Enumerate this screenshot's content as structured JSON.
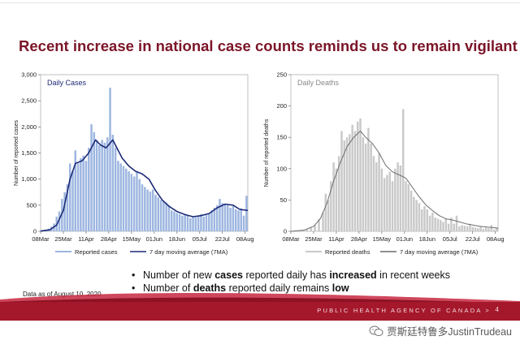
{
  "title": "Recent increase in national case counts reminds us to remain vigilant",
  "bullets": [
    {
      "pre": "Number of new ",
      "bold": "cases",
      "post": " reported daily has ",
      "bold2": "increased",
      "post2": " in recent weeks"
    },
    {
      "pre": "Number of ",
      "bold": "deaths",
      "post": " reported daily remains ",
      "bold2": "low",
      "post2": ""
    }
  ],
  "footnote": "Data as of August 10, 2020",
  "footer": {
    "agency": "PUBLIC HEALTH AGENCY OF CANADA >",
    "page": "4"
  },
  "watermark": "贾斯廷特鲁多JustinTrudeau",
  "colors": {
    "title": "#7b1528",
    "footer": "#a5182c",
    "cases_bar": "#9db6e0",
    "cases_line": "#1c2a78",
    "deaths_bar": "#c9c9c9",
    "deaths_line": "#6d6d6d"
  },
  "chart_data": [
    {
      "type": "bar",
      "title": "Daily Cases",
      "ylabel": "Number of reported cases",
      "xlabel": "",
      "ylim": [
        0,
        3000
      ],
      "yticks": [
        0,
        500,
        1000,
        1500,
        2000,
        2500,
        3000
      ],
      "ytick_labels": [
        "0",
        "500",
        "1,000",
        "1,500",
        "2,000",
        "2,500",
        "3,000"
      ],
      "x_start": "2020-03-08",
      "x_end": "2020-08-10",
      "xtick_labels": [
        "08Mar",
        "25Mar",
        "11Apr",
        "28Apr",
        "15May",
        "01Jun",
        "18Jun",
        "05Jul",
        "22Jul",
        "08Aug"
      ],
      "legend": [
        "Reported cases",
        "7 day moving average (7MA)"
      ],
      "legend_position": "bottom",
      "bar_series": "Reported cases",
      "line_series": "7 day moving average (7MA)",
      "reported": [
        [
          "2020-03-08",
          5
        ],
        [
          "2020-03-10",
          10
        ],
        [
          "2020-03-12",
          20
        ],
        [
          "2020-03-14",
          50
        ],
        [
          "2020-03-16",
          90
        ],
        [
          "2020-03-18",
          150
        ],
        [
          "2020-03-20",
          280
        ],
        [
          "2020-03-22",
          380
        ],
        [
          "2020-03-24",
          620
        ],
        [
          "2020-03-26",
          750
        ],
        [
          "2020-03-28",
          900
        ],
        [
          "2020-03-30",
          1300
        ],
        [
          "2020-04-01",
          1150
        ],
        [
          "2020-04-03",
          1550
        ],
        [
          "2020-04-05",
          1300
        ],
        [
          "2020-04-07",
          1400
        ],
        [
          "2020-04-09",
          1450
        ],
        [
          "2020-04-11",
          1350
        ],
        [
          "2020-04-13",
          1600
        ],
        [
          "2020-04-15",
          2050
        ],
        [
          "2020-04-17",
          1900
        ],
        [
          "2020-04-19",
          1750
        ],
        [
          "2020-04-21",
          1650
        ],
        [
          "2020-04-23",
          1750
        ],
        [
          "2020-04-25",
          1700
        ],
        [
          "2020-04-27",
          1800
        ],
        [
          "2020-04-29",
          2750
        ],
        [
          "2020-05-01",
          1850
        ],
        [
          "2020-05-03",
          1600
        ],
        [
          "2020-05-05",
          1350
        ],
        [
          "2020-05-07",
          1300
        ],
        [
          "2020-05-09",
          1250
        ],
        [
          "2020-05-11",
          1200
        ],
        [
          "2020-05-13",
          1150
        ],
        [
          "2020-05-15",
          1100
        ],
        [
          "2020-05-17",
          1050
        ],
        [
          "2020-05-19",
          1150
        ],
        [
          "2020-05-21",
          1000
        ],
        [
          "2020-05-23",
          900
        ],
        [
          "2020-05-25",
          850
        ],
        [
          "2020-05-27",
          800
        ],
        [
          "2020-05-29",
          760
        ],
        [
          "2020-05-31",
          800
        ],
        [
          "2020-06-02",
          700
        ],
        [
          "2020-06-04",
          650
        ],
        [
          "2020-06-06",
          600
        ],
        [
          "2020-06-08",
          580
        ],
        [
          "2020-06-10",
          550
        ],
        [
          "2020-06-12",
          500
        ],
        [
          "2020-06-14",
          400
        ],
        [
          "2020-06-16",
          380
        ],
        [
          "2020-06-18",
          350
        ],
        [
          "2020-06-20",
          330
        ],
        [
          "2020-06-22",
          300
        ],
        [
          "2020-06-24",
          320
        ],
        [
          "2020-06-26",
          300
        ],
        [
          "2020-06-28",
          250
        ],
        [
          "2020-06-30",
          280
        ],
        [
          "2020-07-02",
          270
        ],
        [
          "2020-07-04",
          300
        ],
        [
          "2020-07-06",
          330
        ],
        [
          "2020-07-08",
          280
        ],
        [
          "2020-07-10",
          310
        ],
        [
          "2020-07-12",
          350
        ],
        [
          "2020-07-14",
          400
        ],
        [
          "2020-07-16",
          450
        ],
        [
          "2020-07-18",
          500
        ],
        [
          "2020-07-20",
          620
        ],
        [
          "2020-07-22",
          540
        ],
        [
          "2020-07-24",
          520
        ],
        [
          "2020-07-26",
          500
        ],
        [
          "2020-07-28",
          450
        ],
        [
          "2020-07-30",
          480
        ],
        [
          "2020-08-01",
          420
        ],
        [
          "2020-08-03",
          400
        ],
        [
          "2020-08-05",
          440
        ],
        [
          "2020-08-07",
          300
        ],
        [
          "2020-08-09",
          680
        ]
      ],
      "moving_average": [
        [
          "2020-03-08",
          5
        ],
        [
          "2020-03-15",
          30
        ],
        [
          "2020-03-20",
          120
        ],
        [
          "2020-03-25",
          400
        ],
        [
          "2020-03-30",
          1000
        ],
        [
          "2020-04-03",
          1300
        ],
        [
          "2020-04-08",
          1350
        ],
        [
          "2020-04-13",
          1500
        ],
        [
          "2020-04-18",
          1750
        ],
        [
          "2020-04-22",
          1650
        ],
        [
          "2020-04-26",
          1600
        ],
        [
          "2020-05-01",
          1750
        ],
        [
          "2020-05-04",
          1600
        ],
        [
          "2020-05-08",
          1400
        ],
        [
          "2020-05-13",
          1250
        ],
        [
          "2020-05-18",
          1150
        ],
        [
          "2020-05-23",
          1100
        ],
        [
          "2020-05-28",
          1000
        ],
        [
          "2020-06-02",
          780
        ],
        [
          "2020-06-07",
          600
        ],
        [
          "2020-06-12",
          480
        ],
        [
          "2020-06-18",
          380
        ],
        [
          "2020-06-24",
          320
        ],
        [
          "2020-06-30",
          280
        ],
        [
          "2020-07-06",
          300
        ],
        [
          "2020-07-12",
          340
        ],
        [
          "2020-07-18",
          450
        ],
        [
          "2020-07-24",
          520
        ],
        [
          "2020-07-30",
          500
        ],
        [
          "2020-08-04",
          420
        ],
        [
          "2020-08-10",
          400
        ]
      ]
    },
    {
      "type": "bar",
      "title": "Daily Deaths",
      "ylabel": "Number of reported deaths",
      "xlabel": "",
      "ylim": [
        0,
        250
      ],
      "yticks": [
        0,
        50,
        100,
        150,
        200,
        250
      ],
      "ytick_labels": [
        "0",
        "50",
        "100",
        "150",
        "200",
        "250"
      ],
      "x_start": "2020-03-08",
      "x_end": "2020-08-10",
      "xtick_labels": [
        "08Mar",
        "25Mar",
        "11Apr",
        "28Apr",
        "15May",
        "01Jun",
        "18Jun",
        "05Jul",
        "22Jul",
        "08Aug"
      ],
      "legend": [
        "Reported deaths",
        "7 day moving average (7MA)"
      ],
      "legend_position": "bottom",
      "bar_series": "Reported deaths",
      "line_series": "7 day moving average (7MA)",
      "reported": [
        [
          "2020-03-08",
          0
        ],
        [
          "2020-03-11",
          1
        ],
        [
          "2020-03-14",
          1
        ],
        [
          "2020-03-17",
          2
        ],
        [
          "2020-03-20",
          3
        ],
        [
          "2020-03-23",
          6
        ],
        [
          "2020-03-26",
          10
        ],
        [
          "2020-03-29",
          20
        ],
        [
          "2020-04-01",
          30
        ],
        [
          "2020-04-03",
          60
        ],
        [
          "2020-04-05",
          50
        ],
        [
          "2020-04-07",
          80
        ],
        [
          "2020-04-09",
          110
        ],
        [
          "2020-04-11",
          100
        ],
        [
          "2020-04-13",
          120
        ],
        [
          "2020-04-15",
          160
        ],
        [
          "2020-04-17",
          145
        ],
        [
          "2020-04-19",
          150
        ],
        [
          "2020-04-21",
          155
        ],
        [
          "2020-04-23",
          170
        ],
        [
          "2020-04-25",
          160
        ],
        [
          "2020-04-27",
          175
        ],
        [
          "2020-04-29",
          180
        ],
        [
          "2020-05-01",
          150
        ],
        [
          "2020-05-03",
          140
        ],
        [
          "2020-05-05",
          165
        ],
        [
          "2020-05-07",
          140
        ],
        [
          "2020-05-09",
          120
        ],
        [
          "2020-05-11",
          110
        ],
        [
          "2020-05-13",
          125
        ],
        [
          "2020-05-15",
          100
        ],
        [
          "2020-05-17",
          85
        ],
        [
          "2020-05-19",
          90
        ],
        [
          "2020-05-21",
          95
        ],
        [
          "2020-05-23",
          80
        ],
        [
          "2020-05-25",
          100
        ],
        [
          "2020-05-27",
          110
        ],
        [
          "2020-05-29",
          105
        ],
        [
          "2020-05-31",
          195
        ],
        [
          "2020-06-02",
          80
        ],
        [
          "2020-06-04",
          75
        ],
        [
          "2020-06-06",
          65
        ],
        [
          "2020-06-08",
          55
        ],
        [
          "2020-06-10",
          50
        ],
        [
          "2020-06-12",
          45
        ],
        [
          "2020-06-14",
          35
        ],
        [
          "2020-06-16",
          40
        ],
        [
          "2020-06-18",
          35
        ],
        [
          "2020-06-20",
          25
        ],
        [
          "2020-06-22",
          30
        ],
        [
          "2020-06-24",
          22
        ],
        [
          "2020-06-26",
          20
        ],
        [
          "2020-06-28",
          18
        ],
        [
          "2020-06-30",
          15
        ],
        [
          "2020-07-02",
          20
        ],
        [
          "2020-07-04",
          12
        ],
        [
          "2020-07-06",
          22
        ],
        [
          "2020-07-08",
          12
        ],
        [
          "2020-07-10",
          25
        ],
        [
          "2020-07-12",
          8
        ],
        [
          "2020-07-14",
          10
        ],
        [
          "2020-07-16",
          9
        ],
        [
          "2020-07-18",
          8
        ],
        [
          "2020-07-20",
          12
        ],
        [
          "2020-07-22",
          7
        ],
        [
          "2020-07-24",
          6
        ],
        [
          "2020-07-26",
          5
        ],
        [
          "2020-07-28",
          8
        ],
        [
          "2020-07-30",
          4
        ],
        [
          "2020-08-01",
          6
        ],
        [
          "2020-08-03",
          5
        ],
        [
          "2020-08-05",
          10
        ],
        [
          "2020-08-07",
          3
        ],
        [
          "2020-08-09",
          6
        ]
      ],
      "moving_average": [
        [
          "2020-03-08",
          0
        ],
        [
          "2020-03-18",
          2
        ],
        [
          "2020-03-25",
          8
        ],
        [
          "2020-03-30",
          20
        ],
        [
          "2020-04-04",
          45
        ],
        [
          "2020-04-09",
          80
        ],
        [
          "2020-04-14",
          110
        ],
        [
          "2020-04-19",
          135
        ],
        [
          "2020-04-24",
          150
        ],
        [
          "2020-04-29",
          160
        ],
        [
          "2020-05-03",
          150
        ],
        [
          "2020-05-08",
          140
        ],
        [
          "2020-05-13",
          125
        ],
        [
          "2020-05-18",
          105
        ],
        [
          "2020-05-23",
          95
        ],
        [
          "2020-05-28",
          90
        ],
        [
          "2020-06-02",
          85
        ],
        [
          "2020-06-07",
          70
        ],
        [
          "2020-06-12",
          55
        ],
        [
          "2020-06-17",
          42
        ],
        [
          "2020-06-22",
          33
        ],
        [
          "2020-06-27",
          25
        ],
        [
          "2020-07-02",
          20
        ],
        [
          "2020-07-07",
          18
        ],
        [
          "2020-07-12",
          15
        ],
        [
          "2020-07-17",
          12
        ],
        [
          "2020-07-22",
          10
        ],
        [
          "2020-07-27",
          8
        ],
        [
          "2020-08-01",
          7
        ],
        [
          "2020-08-06",
          6
        ],
        [
          "2020-08-10",
          5
        ]
      ]
    }
  ]
}
